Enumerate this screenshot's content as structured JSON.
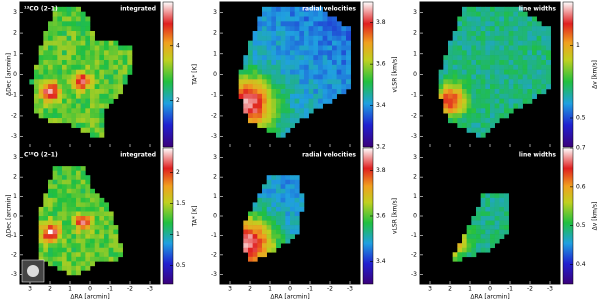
{
  "chart_data": [
    {
      "type": "heatmap",
      "label": "¹³CO (2–1)",
      "title": "integrated",
      "colorbar_label": "TA* [K]",
      "clim": [
        0.3,
        5.6
      ],
      "cticks": [
        2,
        4
      ],
      "xlim": [
        3.5,
        -3.5
      ],
      "xticks": [
        3,
        2,
        1,
        0,
        -1,
        -2,
        -3
      ],
      "ylim": [
        -3.5,
        3.5
      ],
      "yticks": [
        -3,
        -2,
        -1,
        0,
        1,
        2,
        3
      ],
      "ylabel": "ΔDec [arcmin]"
    },
    {
      "type": "heatmap",
      "title": "radial velocities",
      "colorbar_label": "vLSR [km/s]",
      "clim": [
        3.2,
        3.9
      ],
      "cticks": [
        3.2,
        3.4,
        3.6,
        3.8
      ],
      "xlim": [
        3.5,
        -3.5
      ],
      "xticks": [
        3,
        2,
        1,
        0,
        -1,
        -2,
        -3
      ],
      "ylim": [
        -3.5,
        3.5
      ],
      "yticks": [
        -3,
        -2,
        -1,
        0,
        1,
        2,
        3
      ]
    },
    {
      "type": "heatmap",
      "title": "line widths",
      "colorbar_label": "Δv [km/s]",
      "clim": [
        0.3,
        1.3
      ],
      "cticks": [
        0.5,
        1
      ],
      "xlim": [
        3.5,
        -3.5
      ],
      "xticks": [
        3,
        2,
        1,
        0,
        -1,
        -2,
        -3
      ],
      "ylim": [
        -3.5,
        3.5
      ],
      "yticks": [
        -3,
        -2,
        -1,
        0,
        1,
        2,
        3
      ]
    },
    {
      "type": "heatmap",
      "label": "C¹⁸O (2–1)",
      "title": "integrated",
      "colorbar_label": "TA* [K]",
      "clim": [
        0.2,
        2.4
      ],
      "cticks": [
        0.5,
        1,
        1.5,
        2
      ],
      "xlim": [
        3.5,
        -3.5
      ],
      "xticks": [
        3,
        2,
        1,
        0,
        -1,
        -2,
        -3
      ],
      "ylim": [
        -3.5,
        3.5
      ],
      "yticks": [
        -3,
        -2,
        -1,
        0,
        1,
        2,
        3
      ],
      "ylabel": "ΔDec [arcmin]",
      "xlabel": "ΔRA [arcmin]"
    },
    {
      "type": "heatmap",
      "title": "radial velocities",
      "colorbar_label": "vLSR [km/s]",
      "clim": [
        3.3,
        3.9
      ],
      "cticks": [
        3.4,
        3.6,
        3.8
      ],
      "xlim": [
        3.5,
        -3.5
      ],
      "xticks": [
        3,
        2,
        1,
        0,
        -1,
        -2,
        -3
      ],
      "ylim": [
        -3.5,
        3.5
      ],
      "yticks": [
        -3,
        -2,
        -1,
        0,
        1,
        2,
        3
      ],
      "xlabel": "ΔRA [arcmin]"
    },
    {
      "type": "heatmap",
      "title": "line widths",
      "colorbar_label": "Δv [km/s]",
      "clim": [
        0.35,
        0.7
      ],
      "cticks": [
        0.4,
        0.5,
        0.6,
        0.7
      ],
      "xlim": [
        3.5,
        -3.5
      ],
      "xticks": [
        3,
        2,
        1,
        0,
        -1,
        -2,
        -3
      ],
      "ylim": [
        -3.5,
        3.5
      ],
      "yticks": [
        -3,
        -2,
        -1,
        0,
        1,
        2,
        3
      ],
      "xlabel": "ΔRA [arcmin]"
    }
  ]
}
